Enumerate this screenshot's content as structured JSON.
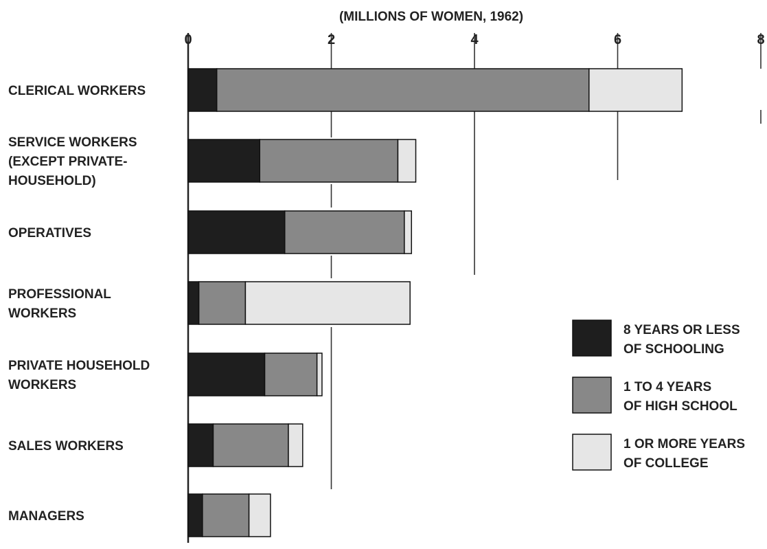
{
  "chart_data": {
    "type": "bar",
    "orientation": "horizontal",
    "stacked": true,
    "title": "(MILLIONS OF WOMEN, 1962)",
    "xlim": [
      0,
      8
    ],
    "x_ticks": [
      "0",
      "2",
      "4",
      "6",
      "8"
    ],
    "x_axis_position": "top",
    "grid": true,
    "legend_position": "right",
    "categories": [
      "CLERICAL WORKERS",
      "SERVICE WORKERS (EXCEPT PRIVATE-HOUSEHOLD)",
      "OPERATIVES",
      "PROFESSIONAL WORKERS",
      "PRIVATE HOUSEHOLD WORKERS",
      "SALES WORKERS",
      "MANAGERS"
    ],
    "category_label_lines": [
      [
        "CLERICAL  WORKERS"
      ],
      [
        "SERVICE  WORKERS",
        "(EXCEPT PRIVATE-",
        "HOUSEHOLD)"
      ],
      [
        "OPERATIVES"
      ],
      [
        "PROFESSIONAL",
        "WORKERS"
      ],
      [
        "PRIVATE HOUSEHOLD",
        "WORKERS"
      ],
      [
        "SALES WORKERS"
      ],
      [
        "MANAGERS"
      ]
    ],
    "series": [
      {
        "name": "8 YEARS OR LESS OF SCHOOLING",
        "legend_lines": [
          "8 YEARS OR LESS",
          "OF SCHOOLING"
        ],
        "color": "#1e1e1e",
        "values": [
          0.4,
          1.0,
          1.35,
          0.15,
          1.07,
          0.35,
          0.2
        ]
      },
      {
        "name": "1 TO 4 YEARS OF HIGH SCHOOL",
        "legend_lines": [
          "1 TO 4 YEARS",
          "OF HIGH SCHOOL"
        ],
        "color": "#888888",
        "values": [
          5.2,
          1.93,
          1.67,
          0.65,
          0.73,
          1.05,
          0.65
        ]
      },
      {
        "name": "1 OR MORE YEARS OF COLLEGE",
        "legend_lines": [
          "1 OR MORE YEARS",
          "OF COLLEGE"
        ],
        "color": "#e6e6e6",
        "values": [
          1.3,
          0.25,
          0.1,
          2.3,
          0.07,
          0.2,
          0.3
        ]
      }
    ]
  }
}
